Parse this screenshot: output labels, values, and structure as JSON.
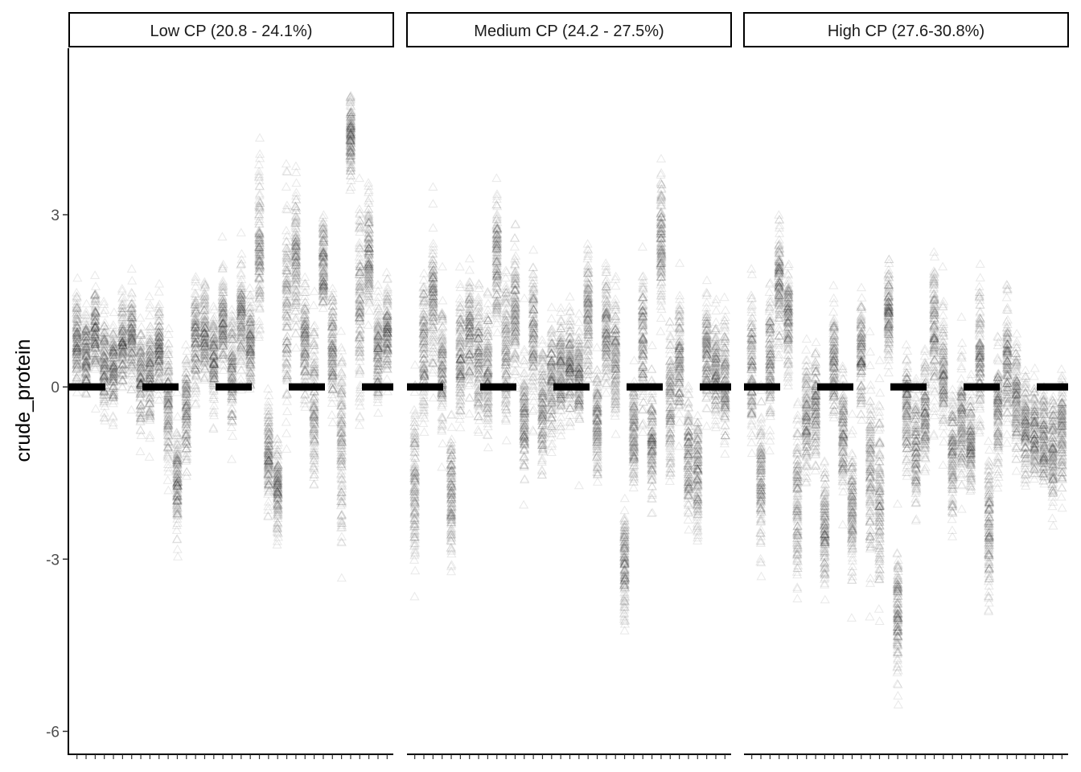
{
  "chart_data": {
    "type": "scatter",
    "ylabel": "crude_protein",
    "xlabel": "",
    "ylim": [
      -6.4,
      5.9
    ],
    "yticks": [
      -6,
      -3,
      0,
      3
    ],
    "ytick_labels": [
      "-6",
      "-3",
      "0",
      "3"
    ],
    "reference_line": {
      "y": 0,
      "style": "dashed"
    },
    "marker": "open-triangle",
    "grid": false,
    "panels": [
      {
        "label": "Low CP (20.8 - 24.1%)",
        "categories": 35,
        "columns": [
          {
            "center": 0.8,
            "spread": 0.35
          },
          {
            "center": 0.6,
            "spread": 0.35
          },
          {
            "center": 0.9,
            "spread": 0.35
          },
          {
            "center": 0.4,
            "spread": 0.4
          },
          {
            "center": 0.3,
            "spread": 0.4
          },
          {
            "center": 0.7,
            "spread": 0.4
          },
          {
            "center": 0.8,
            "spread": 0.4
          },
          {
            "center": 0.2,
            "spread": 0.4
          },
          {
            "center": 0.3,
            "spread": 0.45
          },
          {
            "center": 0.7,
            "spread": 0.4
          },
          {
            "center": -0.3,
            "spread": 0.5
          },
          {
            "center": -1.7,
            "spread": 0.45
          },
          {
            "center": -0.4,
            "spread": 0.5
          },
          {
            "center": 0.8,
            "spread": 0.45
          },
          {
            "center": 0.9,
            "spread": 0.4
          },
          {
            "center": 0.5,
            "spread": 0.4
          },
          {
            "center": 1.1,
            "spread": 0.4
          },
          {
            "center": 0.3,
            "spread": 0.5
          },
          {
            "center": 1.2,
            "spread": 0.45
          },
          {
            "center": 0.7,
            "spread": 0.45
          },
          {
            "center": 2.4,
            "spread": 0.65
          },
          {
            "center": -1.2,
            "spread": 0.45
          },
          {
            "center": -1.8,
            "spread": 0.35
          },
          {
            "center": 1.4,
            "spread": 0.9
          },
          {
            "center": 2.2,
            "spread": 0.6
          },
          {
            "center": 0.8,
            "spread": 0.45
          },
          {
            "center": -0.3,
            "spread": 0.7
          },
          {
            "center": 2.1,
            "spread": 0.4
          },
          {
            "center": 0.7,
            "spread": 0.45
          },
          {
            "center": -1.0,
            "spread": 0.8
          },
          {
            "center": 4.3,
            "spread": 0.35
          },
          {
            "center": 1.4,
            "spread": 0.8
          },
          {
            "center": 2.3,
            "spread": 0.5
          },
          {
            "center": 0.6,
            "spread": 0.45
          },
          {
            "center": 1.0,
            "spread": 0.4
          }
        ]
      },
      {
        "label": "Medium CP (24.2 - 27.5%)",
        "categories": 35,
        "columns": [
          {
            "center": -1.7,
            "spread": 0.7
          },
          {
            "center": 0.6,
            "spread": 0.55
          },
          {
            "center": 1.5,
            "spread": 0.6
          },
          {
            "center": 0.3,
            "spread": 0.5
          },
          {
            "center": -1.9,
            "spread": 0.6
          },
          {
            "center": 0.5,
            "spread": 0.5
          },
          {
            "center": 1.0,
            "spread": 0.5
          },
          {
            "center": 0.5,
            "spread": 0.55
          },
          {
            "center": 0.3,
            "spread": 0.5
          },
          {
            "center": 2.2,
            "spread": 0.5
          },
          {
            "center": 0.6,
            "spread": 0.55
          },
          {
            "center": 1.3,
            "spread": 0.55
          },
          {
            "center": -0.6,
            "spread": 0.5
          },
          {
            "center": 0.9,
            "spread": 0.6
          },
          {
            "center": -0.4,
            "spread": 0.5
          },
          {
            "center": 0.1,
            "spread": 0.5
          },
          {
            "center": 0.3,
            "spread": 0.45
          },
          {
            "center": 0.4,
            "spread": 0.4
          },
          {
            "center": 0.2,
            "spread": 0.4
          },
          {
            "center": 1.3,
            "spread": 0.5
          },
          {
            "center": -0.6,
            "spread": 0.45
          },
          {
            "center": 1.0,
            "spread": 0.5
          },
          {
            "center": 0.5,
            "spread": 0.5
          },
          {
            "center": -3.1,
            "spread": 0.45
          },
          {
            "center": -0.8,
            "spread": 0.5
          },
          {
            "center": 0.8,
            "spread": 0.6
          },
          {
            "center": -1.0,
            "spread": 0.45
          },
          {
            "center": 2.6,
            "spread": 0.55
          },
          {
            "center": -0.3,
            "spread": 0.6
          },
          {
            "center": 0.5,
            "spread": 0.5
          },
          {
            "center": -1.2,
            "spread": 0.5
          },
          {
            "center": -1.5,
            "spread": 0.5
          },
          {
            "center": 0.6,
            "spread": 0.45
          },
          {
            "center": 0.3,
            "spread": 0.45
          },
          {
            "center": 0.2,
            "spread": 0.5
          }
        ]
      },
      {
        "label": "High CP (27.6-30.8%)",
        "categories": 35,
        "columns": [
          {
            "center": 0.3,
            "spread": 0.55
          },
          {
            "center": -1.6,
            "spread": 0.6
          },
          {
            "center": 0.4,
            "spread": 0.5
          },
          {
            "center": 1.8,
            "spread": 0.5
          },
          {
            "center": 1.1,
            "spread": 0.45
          },
          {
            "center": -2.0,
            "spread": 0.7
          },
          {
            "center": -0.5,
            "spread": 0.5
          },
          {
            "center": -0.3,
            "spread": 0.5
          },
          {
            "center": -2.5,
            "spread": 0.5
          },
          {
            "center": 0.4,
            "spread": 0.45
          },
          {
            "center": -0.9,
            "spread": 0.5
          },
          {
            "center": -2.2,
            "spread": 0.55
          },
          {
            "center": 0.6,
            "spread": 0.45
          },
          {
            "center": -1.3,
            "spread": 0.8
          },
          {
            "center": -2.0,
            "spread": 0.9
          },
          {
            "center": 1.3,
            "spread": 0.35
          },
          {
            "center": -4.0,
            "spread": 0.55
          },
          {
            "center": -0.4,
            "spread": 0.5
          },
          {
            "center": -1.1,
            "spread": 0.5
          },
          {
            "center": -0.5,
            "spread": 0.5
          },
          {
            "center": 1.0,
            "spread": 0.6
          },
          {
            "center": 0.2,
            "spread": 0.5
          },
          {
            "center": -1.2,
            "spread": 0.55
          },
          {
            "center": -0.6,
            "spread": 0.55
          },
          {
            "center": -1.0,
            "spread": 0.5
          },
          {
            "center": 0.5,
            "spread": 0.55
          },
          {
            "center": -2.5,
            "spread": 0.6
          },
          {
            "center": -0.4,
            "spread": 0.5
          },
          {
            "center": 0.4,
            "spread": 0.5
          },
          {
            "center": -0.2,
            "spread": 0.5
          },
          {
            "center": -0.7,
            "spread": 0.4
          },
          {
            "center": -0.8,
            "spread": 0.4
          },
          {
            "center": -0.9,
            "spread": 0.4
          },
          {
            "center": -1.1,
            "spread": 0.45
          },
          {
            "center": -0.8,
            "spread": 0.45
          }
        ]
      }
    ]
  }
}
